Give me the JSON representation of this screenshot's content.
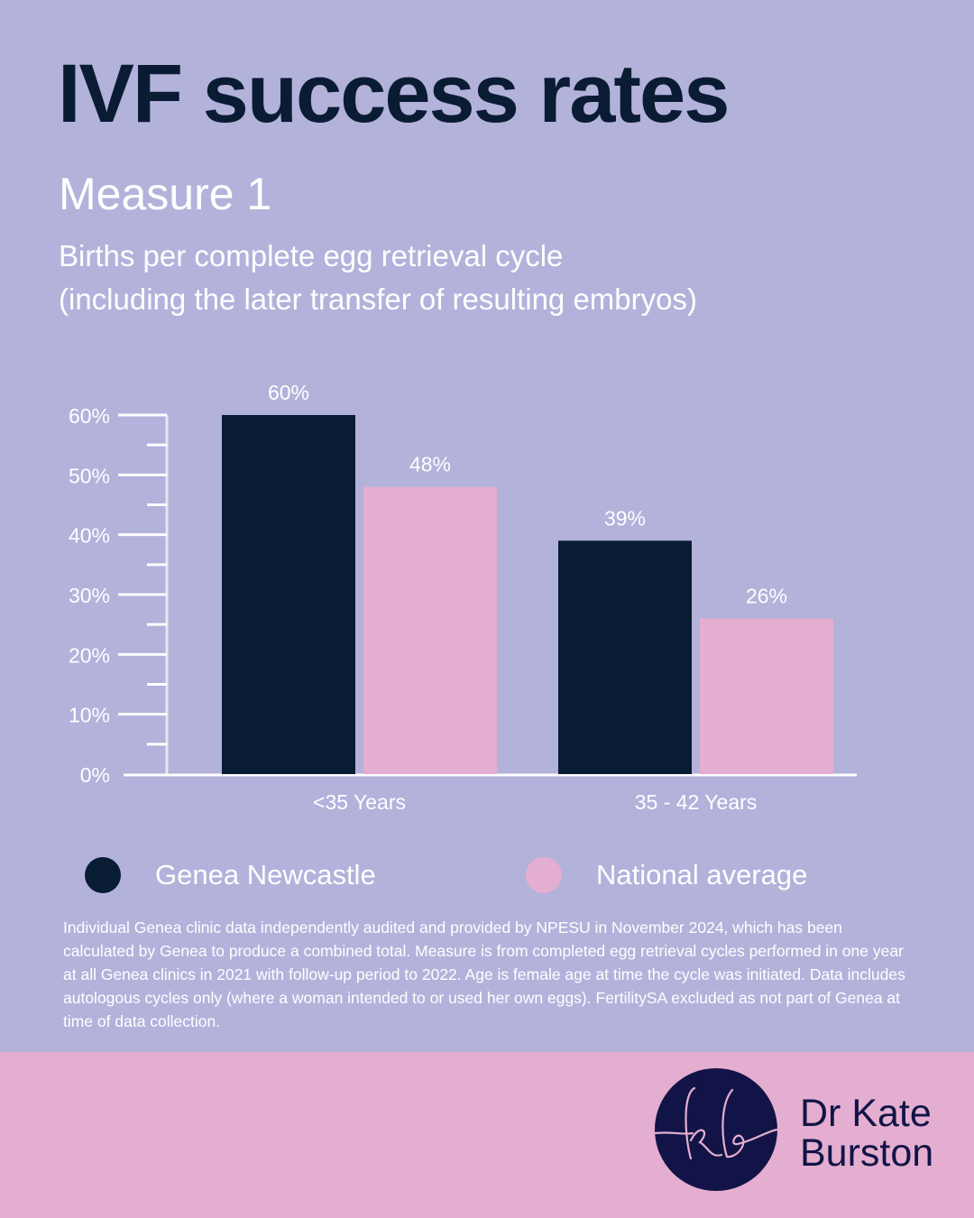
{
  "header": {
    "title": "IVF success rates",
    "measure": "Measure 1",
    "subtitle_line1": "Births per complete egg retrieval cycle",
    "subtitle_line2": "(including the later transfer of resulting embryos)"
  },
  "chart_data": {
    "type": "bar",
    "categories": [
      "<35 Years",
      "35 - 42 Years"
    ],
    "series": [
      {
        "name": "Genea Newcastle",
        "values": [
          60,
          39
        ],
        "labels": [
          "60%",
          "39%"
        ],
        "color": "#081c33"
      },
      {
        "name": "National average",
        "values": [
          48,
          26
        ],
        "labels": [
          "48%",
          "26%"
        ],
        "color": "#e4aed0"
      }
    ],
    "ylim": [
      0,
      60
    ],
    "yticks": [
      "0%",
      "10%",
      "20%",
      "30%",
      "40%",
      "50%",
      "60%"
    ],
    "ytick_values": [
      0,
      10,
      20,
      30,
      40,
      50,
      60
    ],
    "grid": false,
    "legend_placement": "bottom"
  },
  "legend": {
    "items": [
      "Genea Newcastle",
      "National average"
    ]
  },
  "footnote": "Individual Genea clinic data independently audited and provided by NPESU in November 2024, which has been calculated by Genea to produce a combined total. Measure is from completed egg retrieval cycles performed in one year at all Genea clinics in 2021 with follow-up period to 2022. Age is female age at time the cycle was initiated. Data includes autologous cycles only (where a woman intended to or used her own eggs). FertilitySA excluded as not part of Genea at time of data collection.",
  "brand": {
    "line1": "Dr Kate",
    "line2": "Burston",
    "monogram": "kb"
  }
}
